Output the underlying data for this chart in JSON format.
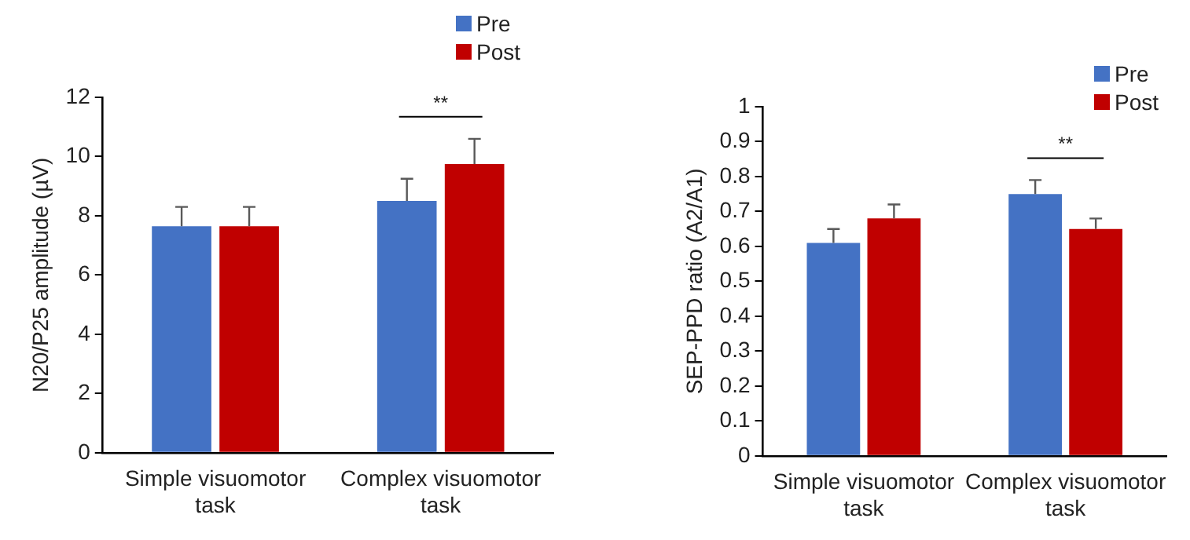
{
  "chart_data": [
    {
      "type": "bar",
      "ylabel": "N20/P25 amplitude (µV)",
      "categories": [
        "Simple visuomotor task",
        "Complex visuomotor task"
      ],
      "series": [
        {
          "name": "Pre",
          "color": "#4472c4",
          "values": [
            7.65,
            8.5
          ],
          "errors": [
            0.65,
            0.75
          ]
        },
        {
          "name": "Post",
          "color": "#c00000",
          "values": [
            7.65,
            9.75
          ],
          "errors": [
            0.65,
            0.85
          ]
        }
      ],
      "ylim": [
        0,
        12
      ],
      "yticks": [
        0,
        2,
        4,
        6,
        8,
        10,
        12
      ],
      "grid": false,
      "legend": "top right",
      "annotations": [
        "**"
      ]
    },
    {
      "type": "bar",
      "ylabel": "SEP-PPD ratio (A2/A1)",
      "categories": [
        "Simple visuomotor task",
        "Complex visuomotor task"
      ],
      "series": [
        {
          "name": "Pre",
          "color": "#4472c4",
          "values": [
            0.61,
            0.75
          ],
          "errors": [
            0.04,
            0.04
          ]
        },
        {
          "name": "Post",
          "color": "#c00000",
          "values": [
            0.68,
            0.65
          ],
          "errors": [
            0.04,
            0.03
          ]
        }
      ],
      "ylim": [
        0,
        1
      ],
      "yticks": [
        0,
        0.1,
        0.2,
        0.3,
        0.4,
        0.5,
        0.6,
        0.7,
        0.8,
        0.9,
        1
      ],
      "grid": false,
      "legend": "top right",
      "annotations": [
        "**"
      ]
    }
  ]
}
